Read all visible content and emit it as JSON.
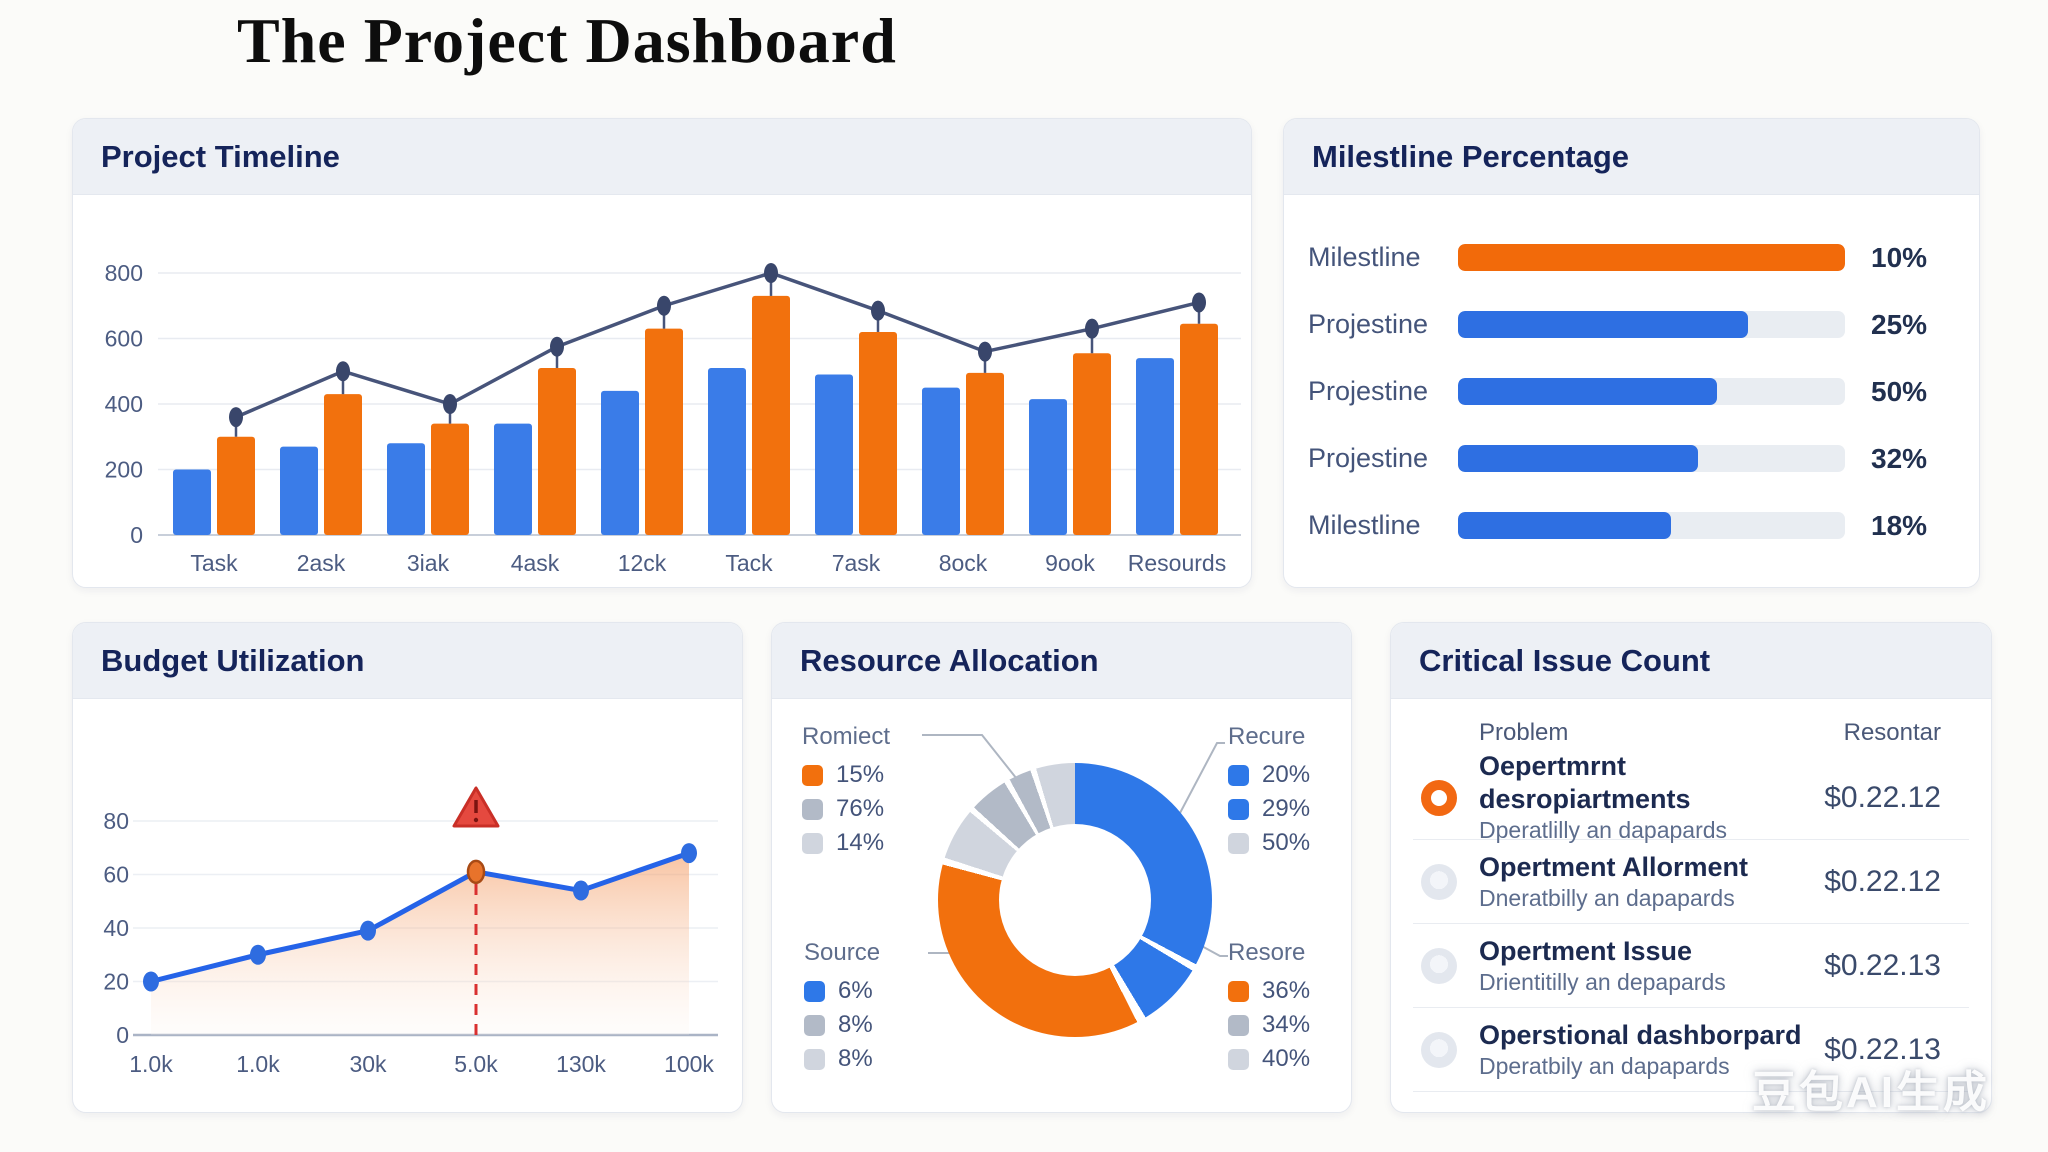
{
  "page": {
    "title": "The Project Dashboard",
    "watermark": "豆包AI生成"
  },
  "colors": {
    "navy": "#15245a",
    "slate": "#44547a",
    "bar_blue": "#3a7ce8",
    "bar_orange": "#f2710d",
    "line_dark": "#47547a",
    "marker_dark": "#39466b",
    "progress_blue": "#2e6fe2",
    "progress_orange": "#f26a0a",
    "track_gray": "#e9edf2",
    "budget_line": "#2563e8",
    "budget_marker": "#2e6ce0",
    "alert_red": "#d93030",
    "blue": "#2e78e8",
    "orange": "#f2700d",
    "mgray": "#b2bac7",
    "lgray": "#d0d5de",
    "white": "#ffffff"
  },
  "panels": {
    "timeline": {
      "title": "Project Timeline"
    },
    "milestones": {
      "title": "Milestline Percentage"
    },
    "budget": {
      "title": "Budget Utilization"
    },
    "resource": {
      "title": "Resource Allocation"
    },
    "critical": {
      "title": "Critical Issue Count",
      "col_problem": "Problem",
      "col_value": "Resontar",
      "rows": [
        {
          "icon": "orange-ring",
          "title": "Oepertmrnt desropiartments",
          "subtitle": "Dperatlilly an dapapards",
          "value": "$0.22.12"
        },
        {
          "icon": "gray-dot",
          "title": "Opertment Allorment",
          "subtitle": "Dneratbilly an dapapards",
          "value": "$0.22.12"
        },
        {
          "icon": "gray-dot",
          "title": "Opertment Issue",
          "subtitle": "Drientitilly an depapards",
          "value": "$0.22.13"
        },
        {
          "icon": "gray-dot",
          "title": "Operstional dashborpard",
          "subtitle": "Dperatbily an dapapards",
          "value": "$0.22.13"
        }
      ]
    }
  },
  "chart_data": [
    {
      "id": "project_timeline",
      "type": "bar",
      "title": "Project Timeline",
      "categories": [
        "Task",
        "2ask",
        "3iak",
        "4ask",
        "12ck",
        "Tack",
        "7ask",
        "8ock",
        "9ook",
        "Resourds"
      ],
      "series": [
        {
          "name": "blue-bars",
          "kind": "bar",
          "color": "#3a7ce8",
          "values": [
            200,
            270,
            280,
            340,
            440,
            510,
            490,
            450,
            415,
            540
          ]
        },
        {
          "name": "orange-bars",
          "kind": "bar",
          "color": "#f2710d",
          "values": [
            300,
            430,
            340,
            510,
            630,
            730,
            620,
            495,
            555,
            645
          ]
        },
        {
          "name": "trend-line",
          "kind": "line",
          "color": "#47547a",
          "values": [
            360,
            500,
            400,
            575,
            700,
            800,
            685,
            560,
            630,
            710
          ]
        }
      ],
      "ylabel": "",
      "xlabel": "",
      "ylim": [
        0,
        800
      ],
      "yticks": [
        0,
        200,
        400,
        600,
        800
      ],
      "grid": true,
      "legend": "none"
    },
    {
      "id": "milestone_percentage",
      "type": "bar",
      "orientation": "horizontal",
      "title": "Milestline Percentage",
      "categories": [
        "Milestline",
        "Projestine",
        "Projestine",
        "Projestine",
        "Milestline"
      ],
      "value_labels": [
        "10%",
        "25%",
        "50%",
        "32%",
        "18%"
      ],
      "values": [
        10,
        25,
        50,
        32,
        18
      ],
      "fill_fractions": [
        1.0,
        0.75,
        0.67,
        0.62,
        0.55
      ],
      "bar_colors": [
        "orange",
        "blue",
        "blue",
        "blue",
        "blue"
      ]
    },
    {
      "id": "budget_utilization",
      "type": "area",
      "title": "Budget Utilization",
      "x_labels": [
        "1.0k",
        "1.0k",
        "30k",
        "5.0k",
        "130k",
        "100k"
      ],
      "values": [
        20,
        30,
        39,
        61,
        54,
        68
      ],
      "ylim": [
        0,
        80
      ],
      "yticks": [
        0,
        20,
        40,
        60,
        80
      ],
      "grid": true,
      "alert_index": 3,
      "alert_marker": "warning-triangle",
      "alert_line": "red-dashed"
    },
    {
      "id": "resource_allocation",
      "type": "donut",
      "title": "Resource Allocation",
      "segments": [
        [
          "blue",
          0,
          118
        ],
        [
          "white",
          118,
          121
        ],
        [
          "blue",
          121,
          149
        ],
        [
          "white",
          149,
          153
        ],
        [
          "orange",
          153,
          285
        ],
        [
          "white",
          285,
          288
        ],
        [
          "lgray",
          288,
          310
        ],
        [
          "white",
          310,
          312.5
        ],
        [
          "mgray",
          312.5,
          329
        ],
        [
          "white",
          329,
          331.5
        ],
        [
          "mgray",
          331.5,
          341
        ],
        [
          "white",
          341,
          343.5
        ],
        [
          "lgray",
          343.5,
          360
        ]
      ],
      "legends": [
        {
          "title": "Romiect",
          "pos": "top-left",
          "items": [
            [
              "orange",
              "15%"
            ],
            [
              "mgray",
              "76%"
            ],
            [
              "lgray",
              "14%"
            ]
          ]
        },
        {
          "title": "Source",
          "pos": "bottom-left",
          "items": [
            [
              "blue",
              "6%"
            ],
            [
              "mgray",
              "8%"
            ],
            [
              "lgray",
              "8%"
            ]
          ]
        },
        {
          "title": "Recure",
          "pos": "top-right",
          "items": [
            [
              "blue",
              "20%"
            ],
            [
              "blue",
              "29%"
            ],
            [
              "lgray",
              "50%"
            ]
          ]
        },
        {
          "title": "Resore",
          "pos": "bottom-right",
          "items": [
            [
              "orange",
              "36%"
            ],
            [
              "mgray",
              "34%"
            ],
            [
              "lgray",
              "40%"
            ]
          ]
        }
      ]
    }
  ]
}
